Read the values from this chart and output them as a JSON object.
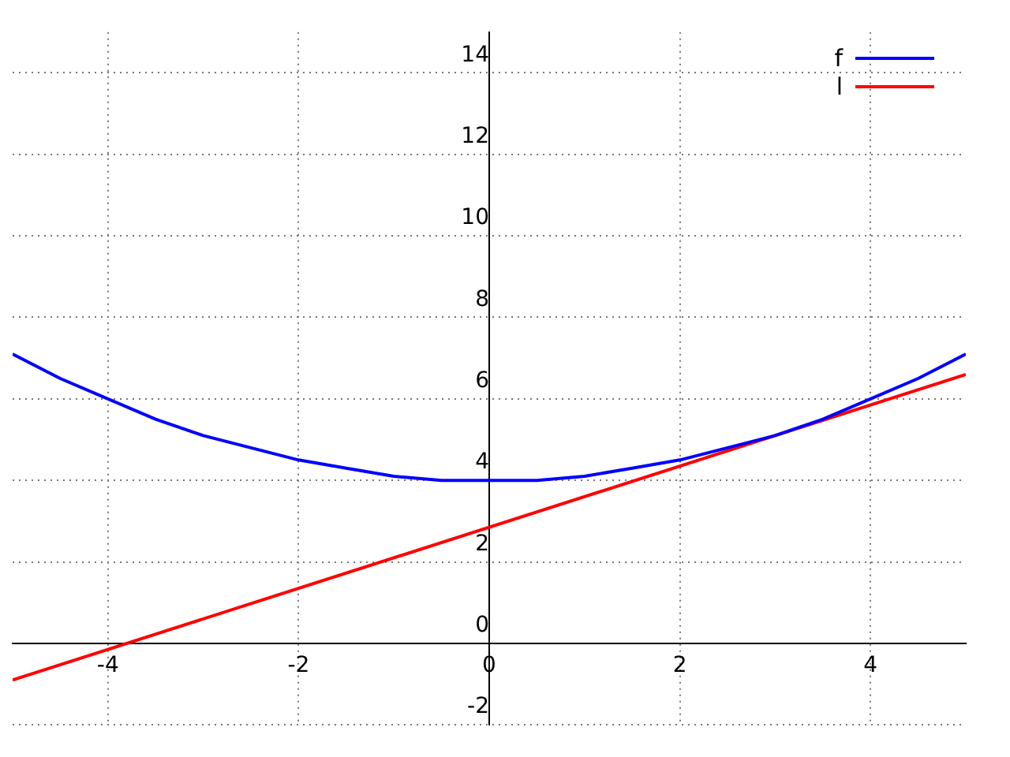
{
  "chart_data": {
    "type": "line",
    "xlim": [
      -5,
      5
    ],
    "xticks": [
      -4,
      -2,
      0,
      2,
      4
    ],
    "ylim": [
      -2,
      15
    ],
    "yticks": [
      -2,
      0,
      2,
      4,
      6,
      8,
      10,
      12,
      14
    ],
    "grid": true,
    "legend": "top right",
    "marker": "none",
    "line_style": "solid",
    "x": [
      -5,
      -4.5,
      -4,
      -3.5,
      -3,
      -2.5,
      -2,
      -1.5,
      -1,
      -0.5,
      0,
      0.5,
      1,
      1.5,
      2,
      2.5,
      3,
      3.5,
      4,
      4.5,
      5
    ],
    "series": [
      {
        "name": "f",
        "color": "#0000ff",
        "values": [
          7.1,
          6.5,
          6,
          5.5,
          5.1,
          4.8,
          4.5,
          4.3,
          4.1,
          4,
          4,
          4,
          4.1,
          4.3,
          4.5,
          4.8,
          5.1,
          5.5,
          6,
          6.5,
          7.1
        ]
      },
      {
        "name": "l",
        "color": "#ff0000",
        "x": [
          -5,
          5
        ],
        "values": [
          -0.9,
          6.6
        ]
      }
    ]
  }
}
